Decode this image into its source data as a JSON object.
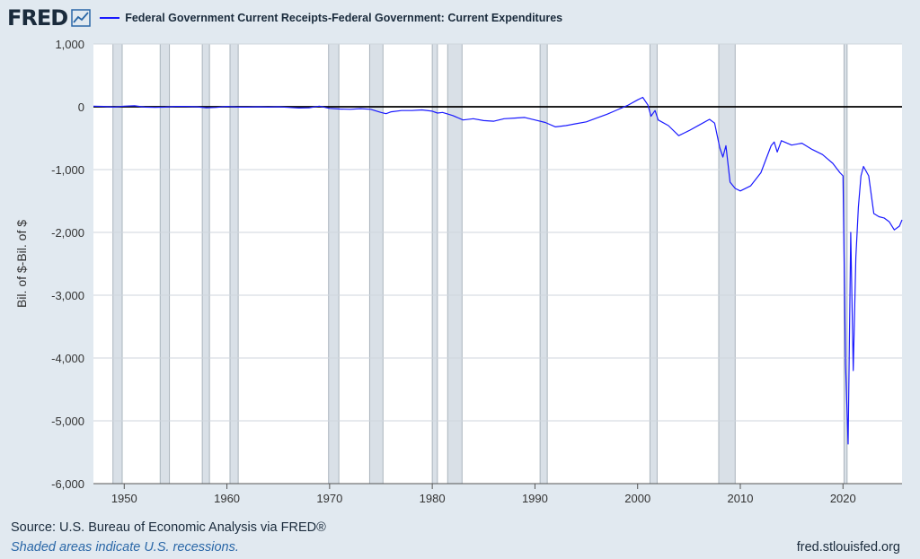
{
  "header": {
    "logo_text": "FRED",
    "logo_icon": "line-chart-icon"
  },
  "footer": {
    "source": "Source: U.S. Bureau of Economic Analysis via FRED®",
    "note": "Shaded areas indicate U.S. recessions.",
    "url": "fred.stlouisfed.org"
  },
  "colors": {
    "background": "#e1e9f0",
    "plot_bg": "#ffffff",
    "series": "#1a1aff",
    "recession": "#d9e0e7",
    "zero_line": "#000000"
  },
  "chart_data": {
    "type": "line",
    "title": "",
    "xlabel": "",
    "ylabel": "Bil. of $-Bil. of $",
    "xlim": [
      1947,
      2025.75
    ],
    "ylim": [
      -6000,
      1000
    ],
    "x_ticks": [
      1950,
      1960,
      1970,
      1980,
      1990,
      2000,
      2010,
      2020
    ],
    "x_tick_labels": [
      "1950",
      "1960",
      "1970",
      "1980",
      "1990",
      "2000",
      "2010",
      "2020"
    ],
    "y_ticks": [
      1000,
      0,
      -1000,
      -2000,
      -3000,
      -4000,
      -5000,
      -6000
    ],
    "y_tick_labels": [
      "1,000",
      "0",
      "-1,000",
      "-2,000",
      "-3,000",
      "-4,000",
      "-5,000",
      "-6,000"
    ],
    "grid": true,
    "legend_position": "top-left",
    "reference_line": 0,
    "recessions": [
      [
        1948.9,
        1949.8
      ],
      [
        1953.5,
        1954.4
      ],
      [
        1957.6,
        1958.3
      ],
      [
        1960.3,
        1961.1
      ],
      [
        1969.9,
        1970.9
      ],
      [
        1973.9,
        1975.2
      ],
      [
        1980.0,
        1980.5
      ],
      [
        1981.5,
        1982.9
      ],
      [
        1990.5,
        1991.2
      ],
      [
        2001.2,
        2001.9
      ],
      [
        2007.9,
        2009.5
      ],
      [
        2020.1,
        2020.4
      ]
    ],
    "series": [
      {
        "name": "Federal Government Current Receipts-Federal Government: Current Expenditures",
        "x": [
          1947,
          1948,
          1949,
          1950,
          1951,
          1952,
          1953,
          1954,
          1955,
          1956,
          1957,
          1958,
          1959,
          1960,
          1961,
          1962,
          1963,
          1964,
          1965,
          1966,
          1967,
          1968,
          1969,
          1970,
          1971,
          1972,
          1973,
          1974,
          1975,
          1975.5,
          1976,
          1977,
          1978,
          1979,
          1980,
          1980.5,
          1981,
          1982,
          1983,
          1984,
          1985,
          1986,
          1987,
          1988,
          1989,
          1990,
          1991,
          1992,
          1993,
          1994,
          1995,
          1996,
          1997,
          1998,
          1999,
          2000,
          2000.5,
          2001,
          2001.3,
          2001.7,
          2002,
          2003,
          2004,
          2005,
          2006,
          2007,
          2007.5,
          2008,
          2008.3,
          2008.6,
          2009,
          2009.5,
          2010,
          2011,
          2012,
          2013,
          2013.3,
          2013.6,
          2014,
          2015,
          2016,
          2017,
          2018,
          2018.5,
          2019,
          2019.7,
          2020,
          2020.25,
          2020.5,
          2020.75,
          2021,
          2021.25,
          2021.5,
          2021.75,
          2022,
          2022.5,
          2023,
          2023.5,
          2024,
          2024.5,
          2025,
          2025.5,
          2025.75
        ],
        "values": [
          10,
          5,
          -5,
          10,
          15,
          -5,
          -10,
          -5,
          5,
          5,
          0,
          -15,
          -10,
          5,
          -5,
          -5,
          0,
          -5,
          0,
          -10,
          -20,
          -15,
          10,
          -25,
          -35,
          -40,
          -30,
          -40,
          -90,
          -110,
          -80,
          -60,
          -60,
          -50,
          -70,
          -100,
          -90,
          -140,
          -210,
          -190,
          -220,
          -230,
          -190,
          -180,
          -170,
          -210,
          -250,
          -320,
          -300,
          -270,
          -240,
          -180,
          -120,
          -50,
          20,
          110,
          150,
          30,
          -150,
          -60,
          -210,
          -300,
          -460,
          -380,
          -290,
          -200,
          -260,
          -650,
          -800,
          -620,
          -1200,
          -1300,
          -1340,
          -1260,
          -1050,
          -620,
          -560,
          -720,
          -540,
          -610,
          -580,
          -680,
          -760,
          -830,
          -900,
          -1050,
          -1100,
          -4100,
          -5370,
          -2000,
          -4200,
          -2400,
          -1600,
          -1100,
          -950,
          -1100,
          -1700,
          -1750,
          -1770,
          -1830,
          -1960,
          -1900,
          -1800
        ]
      }
    ]
  }
}
